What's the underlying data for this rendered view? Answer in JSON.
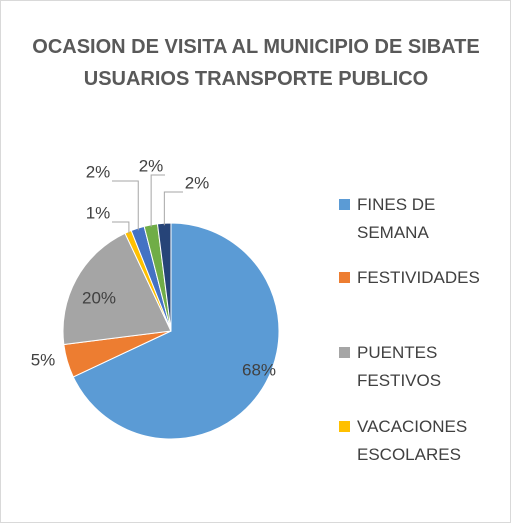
{
  "chart_data": {
    "type": "pie",
    "title": "OCASION DE VISITA AL MUNICIPIO DE SIBATE USUARIOS TRANSPORTE PUBLICO",
    "categories": [
      "FINES DE SEMANA",
      "FESTIVIDADES",
      "PUENTES FESTIVOS",
      "VACACIONES ESCOLARES",
      null,
      null,
      null
    ],
    "values": [
      68,
      5,
      20,
      1,
      2,
      2,
      2
    ],
    "value_labels": [
      "68%",
      "5%",
      "20%",
      "1%",
      "2%",
      "2%",
      "2%"
    ],
    "colors": [
      "#5b9bd5",
      "#ed7d31",
      "#a5a5a5",
      "#ffc000",
      "#4472c4",
      "#70ad47",
      "#264478"
    ],
    "legend": "right"
  }
}
